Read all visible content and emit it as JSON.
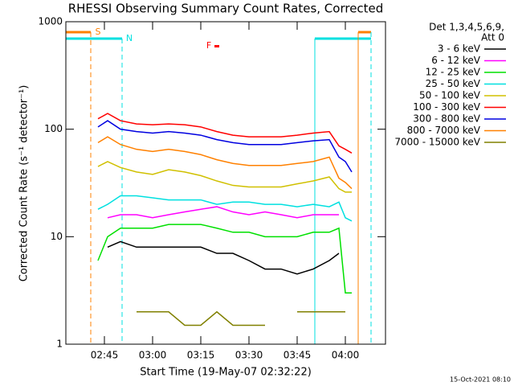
{
  "chart_data": {
    "type": "line",
    "title": "RHESSI Observing Summary Count Rates, Corrected",
    "x_label": "Start Time (19-May-07 02:32:22)",
    "y_label": "Corrected Count Rate (s⁻¹ detector⁻¹)",
    "legend_header": [
      "Det 1,3,4,5,6,9,",
      "Att 0"
    ],
    "footer": "15-Oct-2021 08:10",
    "log_y": true,
    "xlim": [
      153,
      252.5
    ],
    "ylim": [
      1,
      1000
    ],
    "xticks": [
      {
        "value": 165,
        "label": "02:45"
      },
      {
        "value": 180,
        "label": "03:00"
      },
      {
        "value": 195,
        "label": "03:15"
      },
      {
        "value": 210,
        "label": "03:30"
      },
      {
        "value": 225,
        "label": "03:45"
      },
      {
        "value": 240,
        "label": "04:00"
      }
    ],
    "yticks": [
      1,
      10,
      100,
      1000
    ],
    "annotations": [
      {
        "text": "S",
        "color": "#ff8000"
      },
      {
        "text": "N",
        "color": "#00e0e0"
      },
      {
        "text": "F",
        "color": "#ff0000"
      }
    ],
    "x": [
      163,
      166,
      170,
      175,
      180,
      185,
      190,
      195,
      200,
      205,
      210,
      215,
      220,
      225,
      230,
      235,
      238,
      240,
      242
    ],
    "series": [
      {
        "name": "3 - 6 keV",
        "color": "#000000",
        "values": [
          null,
          8,
          9,
          8,
          8,
          8,
          8,
          8,
          7,
          7,
          6,
          5,
          5,
          4.5,
          5,
          6,
          7,
          null,
          null
        ]
      },
      {
        "name": "6 - 12 keV",
        "color": "#ff00ff",
        "values": [
          null,
          15,
          16,
          16,
          15,
          16,
          17,
          18,
          19,
          17,
          16,
          17,
          16,
          15,
          16,
          16,
          16,
          null,
          null
        ]
      },
      {
        "name": "12 - 25 keV",
        "color": "#00e000",
        "values": [
          6,
          10,
          12,
          12,
          12,
          13,
          13,
          13,
          12,
          11,
          11,
          10,
          10,
          10,
          11,
          11,
          12,
          3,
          3
        ]
      },
      {
        "name": "25 - 50 keV",
        "color": "#00e0e0",
        "values": [
          18,
          20,
          24,
          24,
          23,
          22,
          22,
          22,
          20,
          21,
          21,
          20,
          20,
          19,
          20,
          19,
          21,
          15,
          14
        ]
      },
      {
        "name": "50 - 100 keV",
        "color": "#d0c000",
        "values": [
          45,
          50,
          44,
          40,
          38,
          42,
          40,
          37,
          33,
          30,
          29,
          29,
          29,
          31,
          33,
          36,
          28,
          26,
          26
        ]
      },
      {
        "name": "100 - 300 keV",
        "color": "#ff0000",
        "values": [
          125,
          140,
          120,
          112,
          110,
          112,
          110,
          105,
          95,
          88,
          85,
          85,
          85,
          88,
          92,
          95,
          70,
          65,
          60
        ]
      },
      {
        "name": "300 - 800 keV",
        "color": "#0000e0",
        "values": [
          105,
          120,
          100,
          95,
          92,
          95,
          92,
          88,
          80,
          75,
          72,
          72,
          72,
          75,
          78,
          80,
          55,
          50,
          40
        ]
      },
      {
        "name": "800 - 7000 keV",
        "color": "#ff8000",
        "values": [
          75,
          85,
          72,
          65,
          62,
          65,
          62,
          58,
          52,
          48,
          46,
          46,
          46,
          48,
          50,
          55,
          35,
          32,
          28
        ]
      },
      {
        "name": "7000 - 15000 keV",
        "color": "#808000",
        "values": [
          null,
          null,
          null,
          2,
          2,
          2,
          1.5,
          1.5,
          2,
          1.5,
          1.5,
          1.5,
          null,
          2,
          2,
          2,
          2,
          2,
          null
        ]
      }
    ]
  }
}
